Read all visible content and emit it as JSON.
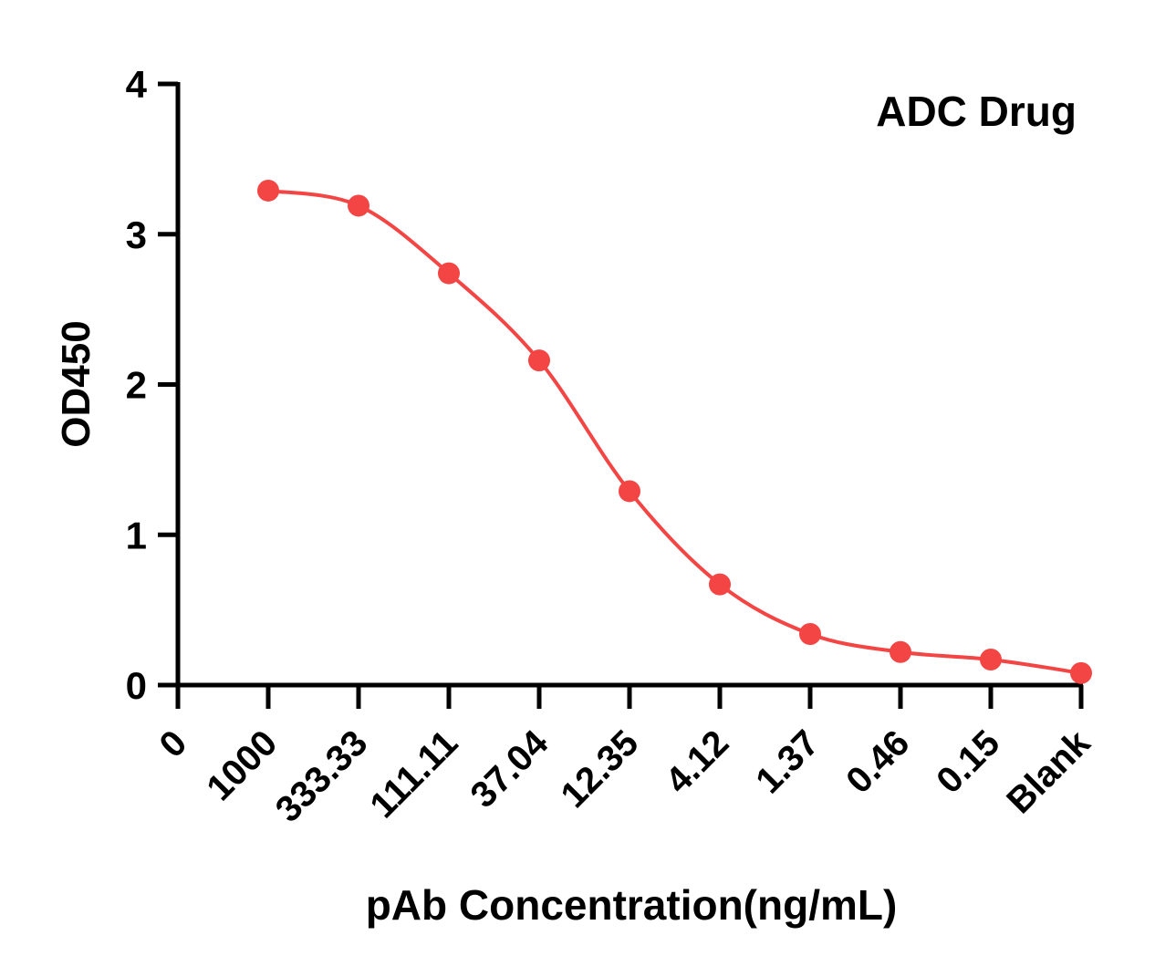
{
  "chart_data": {
    "type": "line",
    "title": "ADC Drug",
    "xlabel": "pAb Concentration(ng/mL)",
    "ylabel": "OD450",
    "categories": [
      "0",
      "1000",
      "333.33",
      "111.11",
      "37.04",
      "12.35",
      "4.12",
      "1.37",
      "0.46",
      "0.15",
      "Blank"
    ],
    "series": [
      {
        "x": [
          "1000",
          "333.33",
          "111.11",
          "37.04",
          "12.35",
          "4.12",
          "1.37",
          "0.46",
          "0.15",
          "Blank"
        ],
        "values": [
          3.29,
          3.19,
          2.74,
          2.16,
          1.29,
          0.67,
          0.34,
          0.22,
          0.17,
          0.08
        ],
        "color": "#f44545"
      }
    ],
    "yticks": [
      "0",
      "1",
      "2",
      "3",
      "4"
    ],
    "ylim": [
      0,
      4
    ],
    "grid": false,
    "curve": "smooth fit"
  }
}
